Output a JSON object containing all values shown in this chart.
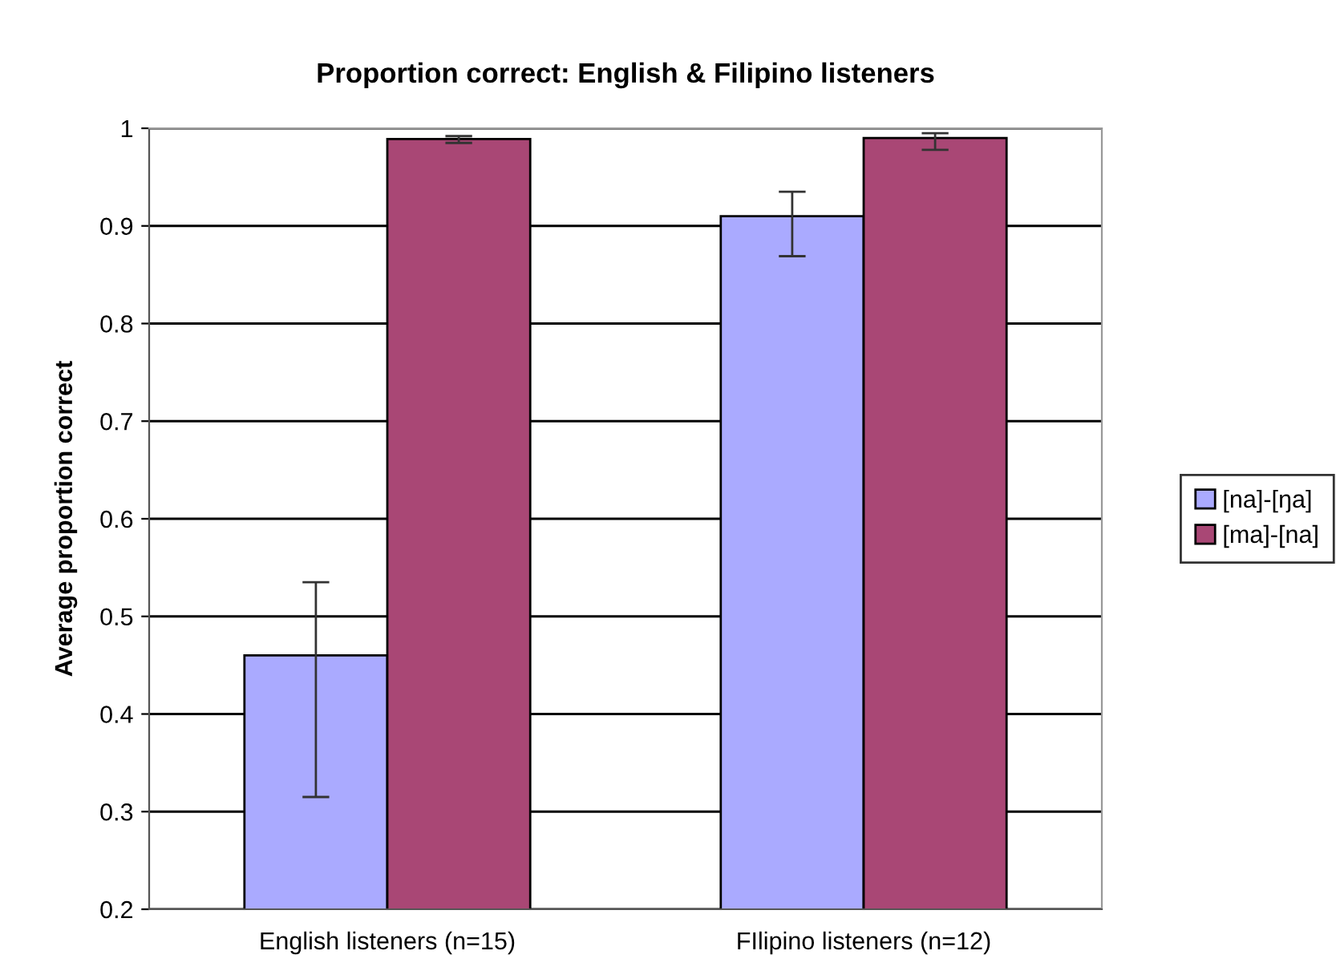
{
  "chart_data": {
    "type": "bar",
    "title": "Proportion correct: English & Filipino listeners",
    "ylabel": "Average proportion correct",
    "categories": [
      "English listeners (n=15)",
      "FIlipino listeners (n=12)"
    ],
    "series": [
      {
        "name": "[na]-[ŋa]",
        "color": "#aaaaff",
        "values": [
          0.46,
          0.91
        ],
        "errors": [
          [
            0.315,
            0.535
          ],
          [
            0.869,
            0.935
          ]
        ]
      },
      {
        "name": "[ma]-[na]",
        "color": "#a94775",
        "values": [
          0.989,
          0.99
        ],
        "errors": [
          [
            0.985,
            0.992
          ],
          [
            0.978,
            0.995
          ]
        ]
      }
    ],
    "ylim": [
      0.2,
      1
    ],
    "yticks": [
      0.2,
      0.3,
      0.4,
      0.5,
      0.6,
      0.7,
      0.8,
      0.9,
      1
    ],
    "grid": "y",
    "legend": "right"
  }
}
